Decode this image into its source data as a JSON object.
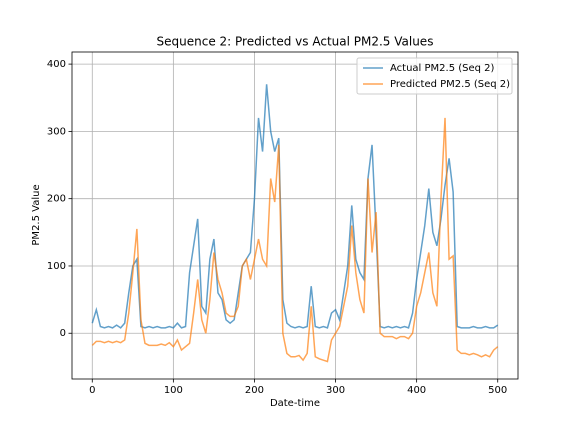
{
  "chart_data": {
    "type": "line",
    "title": "Sequence 2: Predicted vs Actual PM2.5 Values",
    "xlabel": "Date-time",
    "ylabel": "PM2.5 Value",
    "x": [
      0,
      5,
      10,
      15,
      20,
      25,
      30,
      35,
      40,
      45,
      50,
      55,
      60,
      65,
      70,
      75,
      80,
      85,
      90,
      95,
      100,
      105,
      110,
      115,
      120,
      125,
      130,
      135,
      140,
      145,
      150,
      155,
      160,
      165,
      170,
      175,
      180,
      185,
      190,
      195,
      200,
      205,
      210,
      215,
      220,
      225,
      230,
      235,
      240,
      245,
      250,
      255,
      260,
      265,
      270,
      275,
      280,
      285,
      290,
      295,
      300,
      305,
      310,
      315,
      320,
      325,
      330,
      335,
      340,
      345,
      350,
      355,
      360,
      365,
      370,
      375,
      380,
      385,
      390,
      395,
      400,
      405,
      410,
      415,
      420,
      425,
      430,
      435,
      440,
      445,
      450,
      455,
      460,
      465,
      470,
      475,
      480,
      485,
      490,
      495,
      500
    ],
    "series": [
      {
        "name": "Actual PM2.5 (Seq 2)",
        "color": "#1f77b4",
        "values": [
          15,
          35,
          10,
          8,
          10,
          8,
          12,
          8,
          15,
          60,
          100,
          110,
          10,
          8,
          10,
          8,
          10,
          8,
          8,
          10,
          8,
          15,
          8,
          10,
          90,
          130,
          170,
          40,
          30,
          110,
          140,
          60,
          50,
          20,
          15,
          20,
          60,
          100,
          110,
          120,
          200,
          320,
          270,
          370,
          300,
          270,
          290,
          50,
          15,
          10,
          8,
          10,
          8,
          10,
          70,
          10,
          8,
          10,
          8,
          30,
          35,
          20,
          60,
          100,
          190,
          110,
          90,
          80,
          230,
          280,
          150,
          10,
          8,
          10,
          8,
          10,
          8,
          10,
          8,
          30,
          80,
          120,
          160,
          215,
          150,
          130,
          170,
          220,
          260,
          210,
          10,
          8,
          8,
          8,
          10,
          8,
          8,
          10,
          8,
          8,
          12
        ]
      },
      {
        "name": "Predicted PM2.5 (Seq 2)",
        "color": "#ff7f0e",
        "values": [
          -18,
          -12,
          -12,
          -14,
          -12,
          -14,
          -12,
          -14,
          -10,
          30,
          90,
          155,
          20,
          -15,
          -18,
          -18,
          -18,
          -16,
          -18,
          -14,
          -20,
          -10,
          -25,
          -20,
          -15,
          30,
          80,
          20,
          0,
          50,
          120,
          80,
          60,
          30,
          25,
          25,
          40,
          100,
          110,
          80,
          110,
          140,
          110,
          100,
          230,
          195,
          280,
          0,
          -30,
          -35,
          -35,
          -33,
          -40,
          -30,
          40,
          -35,
          -38,
          -40,
          -42,
          -10,
          0,
          10,
          40,
          70,
          160,
          90,
          50,
          30,
          230,
          120,
          180,
          0,
          -5,
          -5,
          -5,
          -8,
          -5,
          -5,
          -8,
          0,
          40,
          60,
          90,
          120,
          60,
          40,
          200,
          320,
          110,
          115,
          -25,
          -30,
          -30,
          -32,
          -30,
          -32,
          -35,
          -32,
          -35,
          -25,
          -20
        ]
      }
    ],
    "xlim": [
      -25,
      525
    ],
    "xticks": [
      0,
      100,
      200,
      300,
      400,
      500
    ],
    "ylim": [
      -68,
      418
    ],
    "yticks": [
      0,
      100,
      200,
      300,
      400
    ],
    "grid": true,
    "legend": "upper right"
  }
}
